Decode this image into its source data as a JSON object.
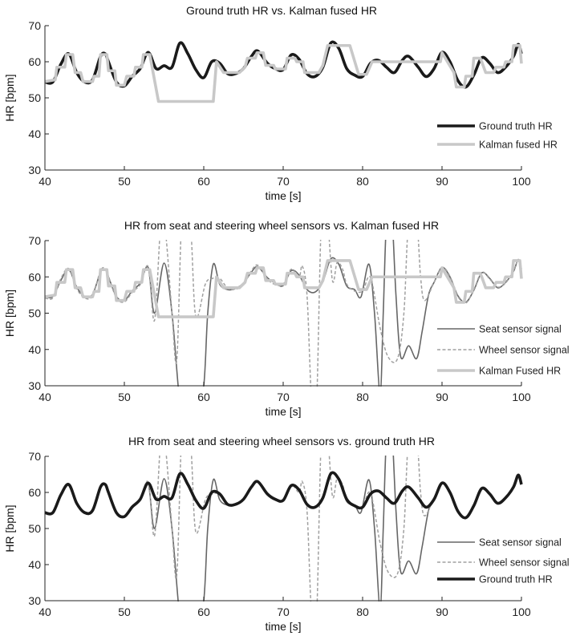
{
  "chart_data": [
    {
      "type": "line",
      "title": "Ground truth HR vs. Kalman fused HR",
      "xlabel": "time [s]",
      "ylabel": "HR [bpm]",
      "xlim": [
        40,
        100
      ],
      "ylim": [
        30,
        70
      ],
      "xticks": [
        40,
        50,
        60,
        70,
        80,
        90,
        100
      ],
      "yticks": [
        30,
        40,
        50,
        60,
        70
      ],
      "grid": false,
      "legend_position": "right",
      "series": [
        {
          "name": "Ground truth HR",
          "ref": "truth",
          "color": "#1a1a1a",
          "style": "solid-thick"
        },
        {
          "name": "Kalman fused HR",
          "ref": "kalman",
          "color": "#c8c8c8",
          "style": "solid-thick"
        }
      ]
    },
    {
      "type": "line",
      "title": "HR from seat and steering wheel sensors vs. Kalman fused HR",
      "xlabel": "time [s]",
      "ylabel": "HR [bpm]",
      "xlim": [
        40,
        100
      ],
      "ylim": [
        30,
        70
      ],
      "xticks": [
        40,
        50,
        60,
        70,
        80,
        90,
        100
      ],
      "yticks": [
        30,
        40,
        50,
        60,
        70
      ],
      "grid": false,
      "legend_position": "right",
      "series": [
        {
          "name": "Seat sensor signal",
          "ref": "seat",
          "color": "#666666",
          "style": "solid"
        },
        {
          "name": "Wheel sensor signal",
          "ref": "wheel",
          "color": "#a0a0a0",
          "style": "dashed"
        },
        {
          "name": "Kalman Fused HR",
          "ref": "kalman",
          "color": "#c8c8c8",
          "style": "solid-thick"
        }
      ]
    },
    {
      "type": "line",
      "title": "HR from seat and steering wheel sensors vs. ground truth HR",
      "xlabel": "time [s]",
      "ylabel": "HR [bpm]",
      "xlim": [
        40,
        100
      ],
      "ylim": [
        30,
        70
      ],
      "xticks": [
        40,
        50,
        60,
        70,
        80,
        90,
        100
      ],
      "yticks": [
        30,
        40,
        50,
        60,
        70
      ],
      "grid": false,
      "legend_position": "right",
      "series": [
        {
          "name": "Seat sensor signal",
          "ref": "seat",
          "color": "#666666",
          "style": "solid"
        },
        {
          "name": "Wheel sensor signal",
          "ref": "wheel",
          "color": "#a0a0a0",
          "style": "dashed"
        },
        {
          "name": "Ground truth HR",
          "ref": "truth",
          "color": "#1a1a1a",
          "style": "solid-thick"
        }
      ]
    }
  ],
  "signals": {
    "truth": [
      [
        40,
        54.4
      ],
      [
        41,
        54.4
      ],
      [
        42,
        59.3
      ],
      [
        43,
        62.2
      ],
      [
        44,
        57
      ],
      [
        45,
        54.4
      ],
      [
        46,
        55
      ],
      [
        47,
        61.5
      ],
      [
        47.6,
        62.2
      ],
      [
        48,
        60
      ],
      [
        49,
        54.4
      ],
      [
        50,
        53.3
      ],
      [
        51,
        56
      ],
      [
        52,
        58.1
      ],
      [
        53,
        62.6
      ],
      [
        54,
        58.1
      ],
      [
        55,
        58.9
      ],
      [
        56,
        58.5
      ],
      [
        57,
        65.2
      ],
      [
        58,
        62.2
      ],
      [
        59,
        57.8
      ],
      [
        60,
        55.6
      ],
      [
        61,
        60
      ],
      [
        62,
        59.6
      ],
      [
        63,
        56.7
      ],
      [
        64,
        56.7
      ],
      [
        65,
        58.1
      ],
      [
        66,
        61.5
      ],
      [
        66.8,
        63
      ],
      [
        68,
        59.6
      ],
      [
        69,
        58.1
      ],
      [
        70,
        57.8
      ],
      [
        71,
        61.9
      ],
      [
        72,
        60.7
      ],
      [
        73,
        56.7
      ],
      [
        74,
        55.9
      ],
      [
        75,
        58.5
      ],
      [
        76,
        65.2
      ],
      [
        77,
        63.7
      ],
      [
        78,
        58.1
      ],
      [
        79,
        56.3
      ],
      [
        80,
        55.9
      ],
      [
        81,
        59.6
      ],
      [
        82,
        60.4
      ],
      [
        83,
        58.5
      ],
      [
        84,
        57
      ],
      [
        85,
        60.4
      ],
      [
        85.8,
        61.5
      ],
      [
        87,
        58.5
      ],
      [
        88,
        55.9
      ],
      [
        89,
        58.1
      ],
      [
        90,
        62.6
      ],
      [
        91,
        60
      ],
      [
        92,
        54.8
      ],
      [
        93,
        53
      ],
      [
        94,
        56.3
      ],
      [
        95,
        61.1
      ],
      [
        96,
        59.6
      ],
      [
        97,
        57
      ],
      [
        98,
        58.5
      ],
      [
        99,
        61.5
      ],
      [
        99.6,
        64.8
      ],
      [
        100,
        62.2
      ]
    ],
    "kalman": [
      [
        40,
        54.5
      ],
      [
        41.3,
        55
      ],
      [
        41.5,
        58.5
      ],
      [
        42.5,
        58.5
      ],
      [
        42.7,
        62
      ],
      [
        43.5,
        62
      ],
      [
        43.8,
        57
      ],
      [
        44.5,
        57
      ],
      [
        44.8,
        54.5
      ],
      [
        46,
        54.5
      ],
      [
        46.2,
        56
      ],
      [
        46.8,
        56
      ],
      [
        47,
        62
      ],
      [
        47.8,
        62
      ],
      [
        48,
        57.5
      ],
      [
        48.8,
        57.5
      ],
      [
        49,
        53.5
      ],
      [
        50,
        53.5
      ],
      [
        50.3,
        56
      ],
      [
        51.2,
        56
      ],
      [
        51.4,
        58.5
      ],
      [
        52.2,
        58.5
      ],
      [
        52.4,
        62
      ],
      [
        53.2,
        62
      ],
      [
        54.3,
        49
      ],
      [
        61.2,
        49
      ],
      [
        61.6,
        60
      ],
      [
        62.5,
        57
      ],
      [
        64.5,
        57
      ],
      [
        65.2,
        58.5
      ],
      [
        65.5,
        61
      ],
      [
        66.5,
        61
      ],
      [
        66.7,
        62.5
      ],
      [
        67.5,
        62.5
      ],
      [
        67.8,
        59
      ],
      [
        68.8,
        59
      ],
      [
        69,
        58
      ],
      [
        70.3,
        58
      ],
      [
        70.5,
        61
      ],
      [
        71.5,
        61
      ],
      [
        71.7,
        60
      ],
      [
        72.5,
        60
      ],
      [
        72.7,
        57
      ],
      [
        74.5,
        57
      ],
      [
        75,
        59
      ],
      [
        75.6,
        64.5
      ],
      [
        78.4,
        64.5
      ],
      [
        79.5,
        56.5
      ],
      [
        80.5,
        56.5
      ],
      [
        81.2,
        60
      ],
      [
        89.8,
        60
      ],
      [
        90,
        62.5
      ],
      [
        91.5,
        57
      ],
      [
        91.8,
        53
      ],
      [
        92.8,
        53
      ],
      [
        93,
        56
      ],
      [
        93.8,
        56
      ],
      [
        94,
        61
      ],
      [
        94.8,
        61
      ],
      [
        95,
        60
      ],
      [
        95.5,
        57
      ],
      [
        96.5,
        57
      ],
      [
        96.8,
        58.5
      ],
      [
        97.8,
        58.5
      ],
      [
        98,
        60
      ],
      [
        98.8,
        60
      ],
      [
        99,
        64.5
      ],
      [
        99.8,
        64.5
      ],
      [
        100,
        59.5
      ]
    ],
    "seat": [
      [
        40,
        54.6
      ],
      [
        41,
        54.6
      ],
      [
        42,
        59
      ],
      [
        43,
        62
      ],
      [
        44,
        57.2
      ],
      [
        45,
        54.6
      ],
      [
        46,
        55.2
      ],
      [
        47,
        61.3
      ],
      [
        47.6,
        62
      ],
      [
        48,
        60
      ],
      [
        49,
        54.6
      ],
      [
        50,
        53.5
      ],
      [
        51,
        56.2
      ],
      [
        52,
        58.3
      ],
      [
        53,
        62.6
      ],
      [
        53.8,
        50
      ],
      [
        55,
        63.8
      ],
      [
        56,
        50
      ],
      [
        57,
        25
      ],
      [
        58,
        15
      ],
      [
        59,
        20
      ],
      [
        60,
        30
      ],
      [
        60.5,
        50
      ],
      [
        61.2,
        63.5
      ],
      [
        62,
        58
      ],
      [
        63,
        56.5
      ],
      [
        64,
        56.8
      ],
      [
        65,
        58.3
      ],
      [
        66,
        61.3
      ],
      [
        66.8,
        62.8
      ],
      [
        68,
        59.8
      ],
      [
        69,
        58.3
      ],
      [
        70,
        57.6
      ],
      [
        71,
        61.7
      ],
      [
        72,
        60.5
      ],
      [
        73,
        56.5
      ],
      [
        74,
        55.8
      ],
      [
        75,
        58.7
      ],
      [
        76,
        65
      ],
      [
        77,
        63.5
      ],
      [
        78,
        57.5
      ],
      [
        79,
        56.5
      ],
      [
        79.8,
        54.5
      ],
      [
        80.8,
        63.5
      ],
      [
        81.5,
        50
      ],
      [
        82.2,
        28
      ],
      [
        82.6,
        50
      ],
      [
        83,
        75
      ],
      [
        83.6,
        80
      ],
      [
        84.2,
        55
      ],
      [
        84.8,
        38
      ],
      [
        85.8,
        41
      ],
      [
        86.8,
        37.5
      ],
      [
        87.5,
        45
      ],
      [
        88.3,
        55
      ],
      [
        89,
        58.5
      ],
      [
        90,
        62.6
      ],
      [
        91,
        60
      ],
      [
        92,
        54.8
      ],
      [
        93,
        53
      ],
      [
        94,
        56.3
      ],
      [
        95,
        61.1
      ],
      [
        96,
        59.6
      ],
      [
        97,
        57
      ],
      [
        98,
        58.5
      ],
      [
        99,
        61.5
      ],
      [
        99.6,
        64.8
      ],
      [
        100,
        62.2
      ]
    ],
    "wheel": [
      [
        40,
        54.2
      ],
      [
        41,
        54.2
      ],
      [
        42,
        59.5
      ],
      [
        43,
        62.3
      ],
      [
        44,
        56.8
      ],
      [
        45,
        54.2
      ],
      [
        46,
        54.8
      ],
      [
        47,
        61.7
      ],
      [
        47.6,
        62.3
      ],
      [
        48,
        60.2
      ],
      [
        49,
        54.2
      ],
      [
        50,
        53.1
      ],
      [
        51,
        55.8
      ],
      [
        52,
        57.9
      ],
      [
        53,
        62.8
      ],
      [
        53.8,
        48
      ],
      [
        54.6,
        75
      ],
      [
        55.2,
        72
      ],
      [
        56,
        50
      ],
      [
        56.6,
        37
      ],
      [
        57.2,
        75
      ],
      [
        57.8,
        80
      ],
      [
        58.4,
        72
      ],
      [
        59,
        49
      ],
      [
        60.2,
        58
      ],
      [
        61,
        59.5
      ],
      [
        62,
        59.6
      ],
      [
        63,
        56.9
      ],
      [
        64,
        56.6
      ],
      [
        65,
        57.9
      ],
      [
        66,
        61.7
      ],
      [
        66.8,
        63.2
      ],
      [
        68,
        59.4
      ],
      [
        69,
        57.9
      ],
      [
        70,
        58
      ],
      [
        71,
        62.1
      ],
      [
        72,
        60
      ],
      [
        72.4,
        63
      ],
      [
        73,
        55
      ],
      [
        73.6,
        25
      ],
      [
        74.2,
        25
      ],
      [
        74.8,
        75
      ],
      [
        75.5,
        78
      ],
      [
        76.2,
        59
      ],
      [
        76.8,
        64
      ],
      [
        77.5,
        62
      ],
      [
        78,
        58
      ],
      [
        79,
        56.1
      ],
      [
        80,
        56.1
      ],
      [
        81,
        59.8
      ],
      [
        82.2,
        46
      ],
      [
        83.2,
        38
      ],
      [
        84.4,
        37.5
      ],
      [
        85.2,
        50
      ],
      [
        85.8,
        75
      ],
      [
        86.8,
        75
      ],
      [
        87.3,
        60
      ],
      [
        87.8,
        53.5
      ],
      [
        89,
        58.5
      ],
      [
        90,
        62.6
      ],
      [
        91,
        60.2
      ],
      [
        92,
        54.6
      ],
      [
        93,
        52.8
      ],
      [
        94,
        56.5
      ],
      [
        95,
        61.3
      ],
      [
        96,
        59.4
      ],
      [
        97,
        57.2
      ],
      [
        98,
        58.3
      ],
      [
        99,
        61.7
      ],
      [
        99.6,
        64.6
      ],
      [
        100,
        62
      ]
    ]
  }
}
